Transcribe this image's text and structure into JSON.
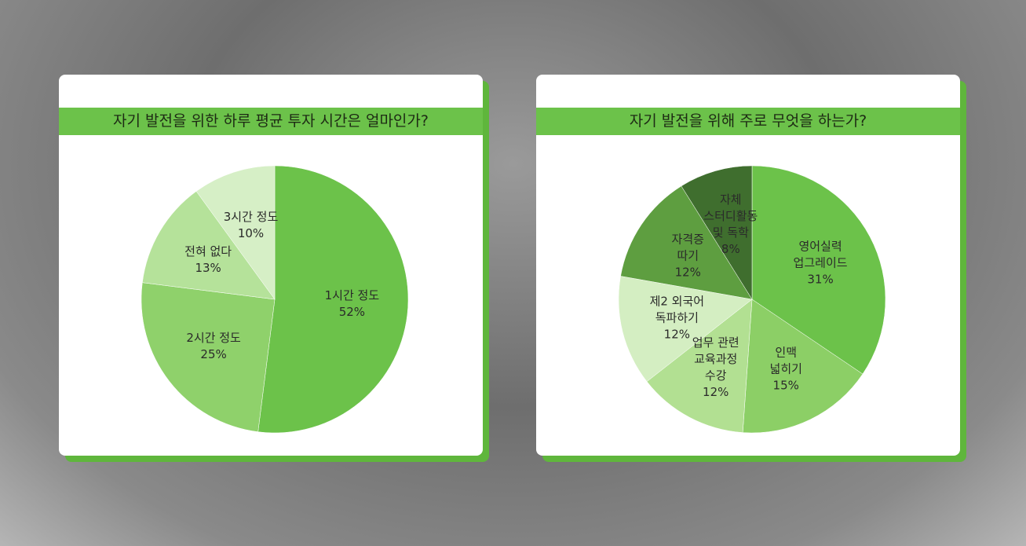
{
  "chart_data": [
    {
      "type": "pie",
      "title": "자기 발전을 위한 하루 평균 투자 시간은 얼마인가?",
      "categories": [
        "1시간 정도",
        "2시간 정도",
        "전혀 없다",
        "3시간 정도"
      ],
      "values": [
        52,
        25,
        13,
        10
      ],
      "value_labels": [
        "52%",
        "25%",
        "13%",
        "10%"
      ],
      "colors": [
        "#6cc24a",
        "#8fd16b",
        "#b5e29a",
        "#d6efc6"
      ]
    },
    {
      "type": "pie",
      "title": "자기 발전을 위해 주로 무엇을 하는가?",
      "categories": [
        "영어실력\n업그레이드",
        "인맥\n넓히기",
        "업무 관련\n교육과정\n수강",
        "제2 외국어\n독파하기",
        "자격증\n따기",
        "자체\n스터디활동\n및 독학"
      ],
      "values": [
        31,
        15,
        12,
        12,
        12,
        8
      ],
      "value_labels": [
        "31%",
        "15%",
        "12%",
        "12%",
        "12%",
        "8%"
      ],
      "colors": [
        "#6cc24a",
        "#8ccf66",
        "#b2e092",
        "#d4eec2",
        "#5e9e40",
        "#3f6e2e"
      ]
    }
  ]
}
